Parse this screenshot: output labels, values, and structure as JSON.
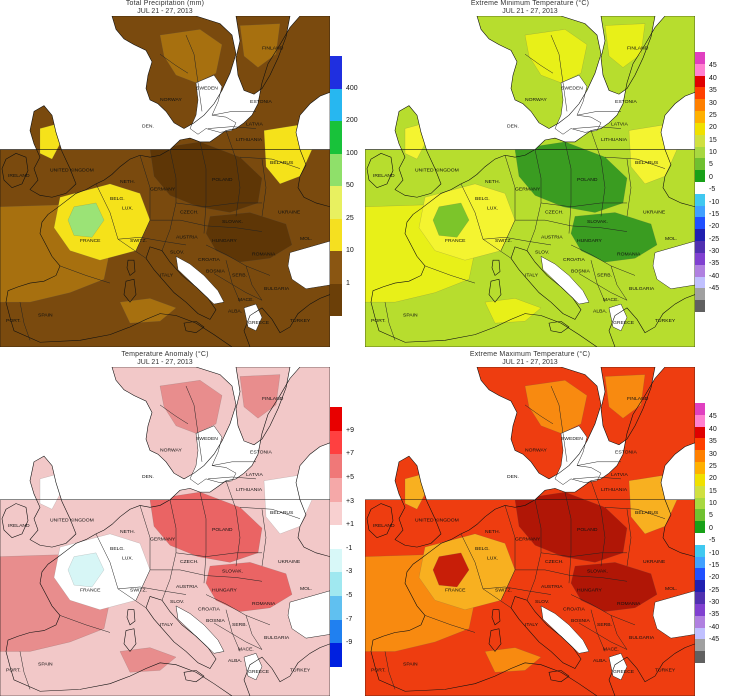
{
  "panels": [
    {
      "id": "precip",
      "title": "Total Precipitation (mm)",
      "subtitle": "JUL 21 - 27, 2013",
      "legend_type": "bins",
      "legend_colors": [
        "#1f2fe0",
        "#27b7f0",
        "#18c23a",
        "#8fe06a",
        "#e8f060",
        "#f5e020",
        "#8a5612",
        "#6b3f08"
      ],
      "legend_labels": [
        "400",
        "200",
        "100",
        "50",
        "25",
        "10",
        "1"
      ],
      "palette": {
        "ocean": "#ffffff",
        "base": "#7a4a0e",
        "mid": "#a7700f",
        "light": "#f5e21a",
        "green": "#9be376",
        "dark": "#5e3606"
      }
    },
    {
      "id": "tmin",
      "title": "Extreme Minimum Temperature (°C)",
      "subtitle": "JUL 21 - 27, 2013",
      "legend_type": "scale",
      "legend_colors": [
        "#e040c0",
        "#ff80d0",
        "#e00000",
        "#ff4000",
        "#ff8000",
        "#ffb000",
        "#f0e000",
        "#d0e040",
        "#a8d840",
        "#70c030",
        "#18a018",
        "#ffffff",
        "#40c8f0",
        "#40a0ff",
        "#2050ff",
        "#2020b0",
        "#5030b0",
        "#8040d0",
        "#b080e0",
        "#c0c0ff",
        "#a0a0a0",
        "#606060"
      ],
      "legend_labels": [
        "45",
        "40",
        "35",
        "30",
        "25",
        "20",
        "15",
        "10",
        "5",
        "0",
        "-5",
        "-10",
        "-15",
        "-20",
        "-25",
        "-30",
        "-35",
        "-40",
        "-45"
      ],
      "palette": {
        "ocean": "#ffffff",
        "base": "#b7dd2e",
        "mid": "#e8f018",
        "light": "#f4f430",
        "green": "#7cc52a",
        "dark": "#3a9c21"
      }
    },
    {
      "id": "anom",
      "title": "Temperature Anomaly (°C)",
      "subtitle": "JUL 21 - 27, 2013",
      "legend_type": "bins",
      "legend_colors": [
        "#e80000",
        "#ff4040",
        "#f07878",
        "#f5a8a8",
        "#f8d0d0",
        "#ffffff",
        "#d8f8f8",
        "#a0e8f0",
        "#60c0f0",
        "#2080f0",
        "#0020e0"
      ],
      "legend_labels": [
        "+9",
        "+7",
        "+5",
        "+3",
        "+1",
        "-1",
        "-3",
        "-5",
        "-7",
        "-9"
      ],
      "palette": {
        "ocean": "#ffffff",
        "base": "#f2c8c8",
        "mid": "#e88d8d",
        "light": "#ffffff",
        "green": "#d7f6f6",
        "dark": "#ea6464"
      }
    },
    {
      "id": "tmax",
      "title": "Extreme Maximum Temperature (°C)",
      "subtitle": "JUL 21 - 27, 2013",
      "legend_type": "scale",
      "legend_colors": [
        "#e040c0",
        "#ff80d0",
        "#e00000",
        "#ff4000",
        "#ff8000",
        "#ffb000",
        "#f0e000",
        "#d0e040",
        "#a8d840",
        "#70c030",
        "#18a018",
        "#ffffff",
        "#40c8f0",
        "#40a0ff",
        "#2050ff",
        "#2020b0",
        "#5030b0",
        "#8040d0",
        "#b080e0",
        "#c0c0ff",
        "#a0a0a0",
        "#606060"
      ],
      "legend_labels": [
        "45",
        "40",
        "35",
        "30",
        "25",
        "20",
        "15",
        "10",
        "5",
        "0",
        "-5",
        "-10",
        "-15",
        "-20",
        "-25",
        "-30",
        "-35",
        "-40",
        "-45"
      ],
      "palette": {
        "ocean": "#ffffff",
        "base": "#ee3d10",
        "mid": "#f88a10",
        "light": "#f8b020",
        "green": "#c81e08",
        "dark": "#b01606"
      }
    }
  ],
  "country_labels": [
    "FINLAND",
    "NORWAY",
    "SWEDEN",
    "ESTONIA",
    "LATVIA",
    "LITHUANIA",
    "DEN.",
    "BELARUS",
    "UNITED KINGDOM",
    "IRELAND",
    "POLAND",
    "GERMANY",
    "NETH.",
    "BELG.",
    "LUX.",
    "CZECH.",
    "SLOVAK.",
    "UKRAINE",
    "MOL.",
    "FRANCE",
    "SWITZ.",
    "AUSTRIA",
    "HUNGARY",
    "ROMANIA",
    "SLOV.",
    "CROATIA",
    "BOSNIA",
    "SERB.",
    "ITALY",
    "BULGARIA",
    "MACE.",
    "ALBA.",
    "GREECE",
    "TURKEY",
    "SPAIN",
    "PORT."
  ]
}
